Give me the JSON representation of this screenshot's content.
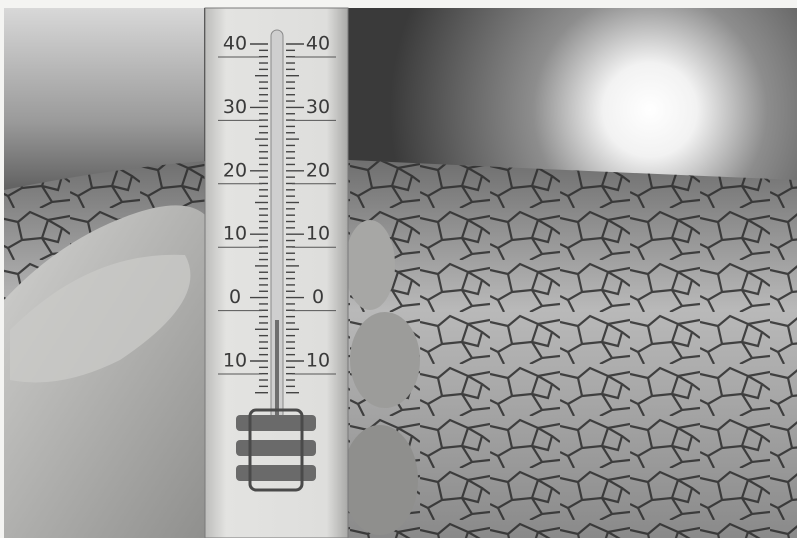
{
  "thermometer": {
    "left_labels": [
      "40",
      "30",
      "20",
      "10",
      "0",
      "10"
    ],
    "right_labels": [
      "40",
      "30",
      "20",
      "10",
      "0",
      "10"
    ]
  }
}
